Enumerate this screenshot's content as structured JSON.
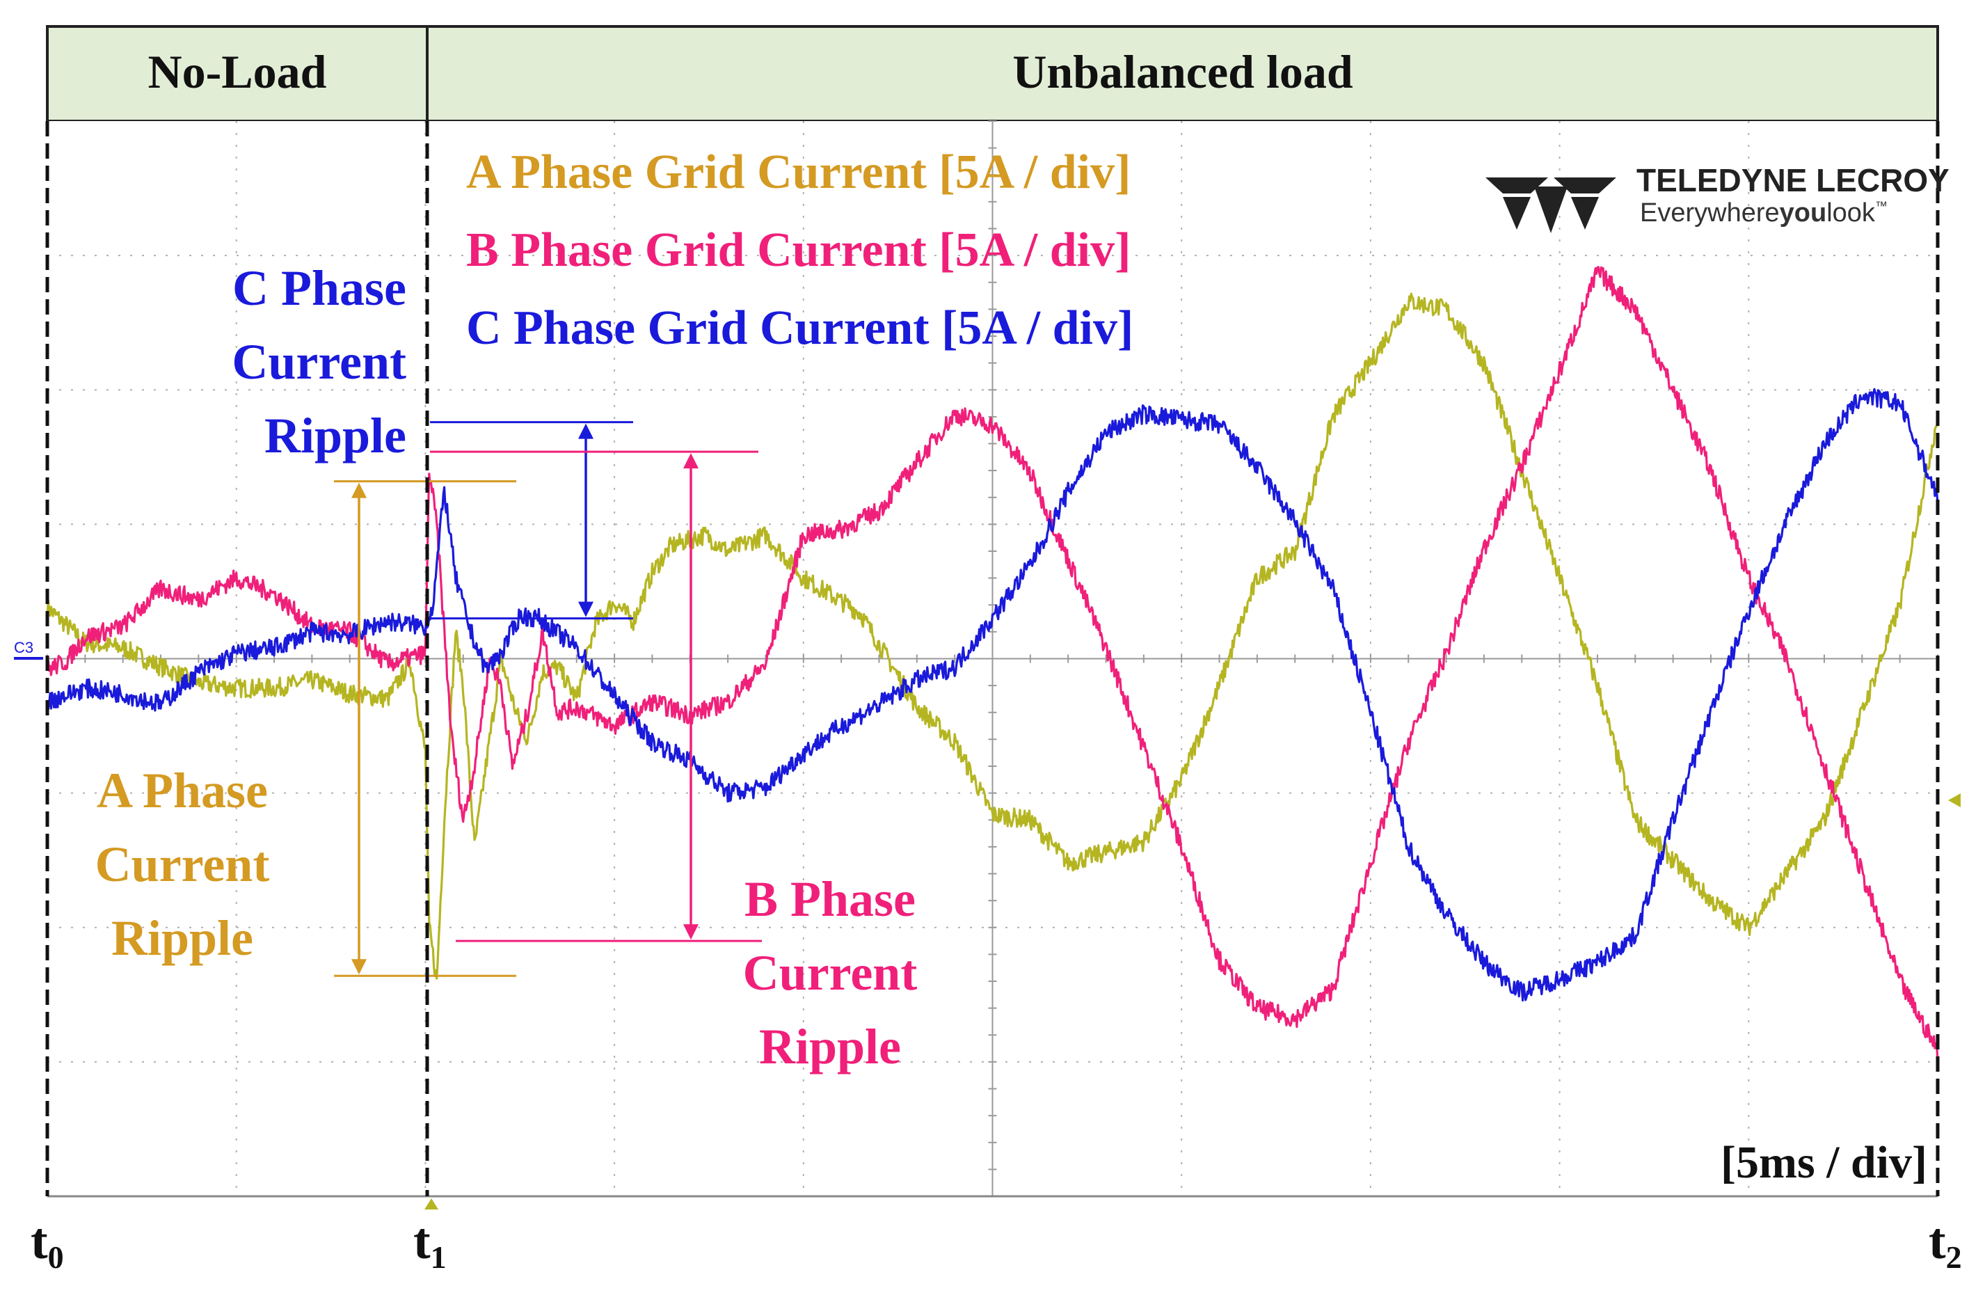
{
  "regions": [
    {
      "label": "No-Load"
    },
    {
      "label": "Unbalanced load"
    }
  ],
  "legend": [
    {
      "text": "A Phase Grid Current [5A / div]",
      "color": "#D49A22"
    },
    {
      "text": "B Phase Grid Current [5A / div]",
      "color": "#F0207A"
    },
    {
      "text": "C Phase Grid Current [5A / div]",
      "color": "#1A1ADB"
    }
  ],
  "annotations": {
    "c_ripple": [
      "C Phase",
      "Current",
      "Ripple"
    ],
    "a_ripple": [
      "A Phase",
      "Current",
      "Ripple"
    ],
    "b_ripple": [
      "B Phase",
      "Current",
      "Ripple"
    ]
  },
  "timescale": "[5ms / div]",
  "time_markers": [
    {
      "base": "t",
      "sub": "0"
    },
    {
      "base": "t",
      "sub": "1"
    },
    {
      "base": "t",
      "sub": "2"
    }
  ],
  "logo": {
    "brand": "TELEDYNE LECROY",
    "tagline_1": "Everywhere",
    "tagline_2": "you",
    "tagline_3": "look",
    "tm": "™"
  },
  "channel_marker": "C3",
  "colors": {
    "header_bg": "#E2EDD6",
    "phase_a_trace": "#B5B522",
    "phase_a_label": "#D49A22",
    "phase_b": "#F0207A",
    "phase_c": "#1A1ADB",
    "grid": "#B0B0B0"
  },
  "chart_data": {
    "type": "line",
    "x_unit": "ms",
    "y_unit": "A",
    "x_per_div": 5,
    "y_per_div": 5,
    "xlim": [
      0,
      50
    ],
    "ylim": [
      -20,
      20
    ],
    "transition_time": 10,
    "series": [
      {
        "name": "A Phase Grid Current [5A / div]",
        "color": "#B5B522",
        "points": [
          [
            0,
            1.9
          ],
          [
            1,
            0.6
          ],
          [
            2,
            0.4
          ],
          [
            3,
            -0.3
          ],
          [
            4,
            -0.9
          ],
          [
            5,
            -1.1
          ],
          [
            6,
            -1.1
          ],
          [
            7,
            -0.8
          ],
          [
            8,
            -1.3
          ],
          [
            9,
            -1.5
          ],
          [
            9.6,
            -0.1
          ],
          [
            10,
            -3.5
          ],
          [
            10.1,
            -10
          ],
          [
            10.3,
            -12
          ],
          [
            10.5,
            -6
          ],
          [
            10.8,
            1
          ],
          [
            11,
            -1
          ],
          [
            11.3,
            -7
          ],
          [
            11.6,
            -4
          ],
          [
            12,
            0
          ],
          [
            12.4,
            -2
          ],
          [
            12.7,
            -3
          ],
          [
            13.1,
            -0.5
          ],
          [
            13.5,
            -0.3
          ],
          [
            14,
            -1.5
          ],
          [
            14.5,
            1.3
          ],
          [
            15,
            2.1
          ],
          [
            15.5,
            1.4
          ],
          [
            16,
            3.2
          ],
          [
            16.5,
            4.2
          ],
          [
            17.4,
            4.6
          ],
          [
            18,
            4.0
          ],
          [
            19,
            4.6
          ],
          [
            20,
            3.0
          ],
          [
            21.5,
            1.7
          ],
          [
            23,
            -1.8
          ],
          [
            24,
            -3.1
          ],
          [
            25,
            -5.8
          ],
          [
            26,
            -6.0
          ],
          [
            27,
            -7.6
          ],
          [
            28,
            -7.2
          ],
          [
            29,
            -6.8
          ],
          [
            30,
            -4.5
          ],
          [
            31,
            -1
          ],
          [
            32,
            3
          ],
          [
            33,
            4
          ],
          [
            34,
            9
          ],
          [
            35,
            11
          ],
          [
            36,
            13.3
          ],
          [
            37,
            13.0
          ],
          [
            38,
            11.0
          ],
          [
            39,
            7
          ],
          [
            40,
            3
          ],
          [
            41,
            -1
          ],
          [
            42,
            -6
          ],
          [
            43,
            -7.5
          ],
          [
            44,
            -9
          ],
          [
            45,
            -10
          ],
          [
            46,
            -8
          ],
          [
            47,
            -6
          ],
          [
            48,
            -2
          ],
          [
            49,
            2
          ],
          [
            50,
            9
          ]
        ]
      },
      {
        "name": "B Phase Grid Current [5A / div]",
        "color": "#F0207A",
        "points": [
          [
            0,
            -0.4
          ],
          [
            0.5,
            -0.1
          ],
          [
            1,
            0.8
          ],
          [
            2,
            1.2
          ],
          [
            3,
            2.6
          ],
          [
            4,
            2.2
          ],
          [
            5,
            3.0
          ],
          [
            6,
            2.4
          ],
          [
            7,
            1.2
          ],
          [
            8,
            1.0
          ],
          [
            9,
            -0.2
          ],
          [
            10,
            0.2
          ],
          [
            10.1,
            7
          ],
          [
            10.3,
            5
          ],
          [
            10.7,
            -3
          ],
          [
            11,
            -6
          ],
          [
            11.3,
            -4
          ],
          [
            11.7,
            0
          ],
          [
            12,
            -1
          ],
          [
            12.3,
            -4
          ],
          [
            12.7,
            -2
          ],
          [
            13.1,
            1
          ],
          [
            13.5,
            -2
          ],
          [
            14,
            -1.8
          ],
          [
            15,
            -2.5
          ],
          [
            16,
            -1.6
          ],
          [
            17,
            -2.1
          ],
          [
            18,
            -1.6
          ],
          [
            19,
            -0.2
          ],
          [
            20,
            4.6
          ],
          [
            21,
            4.8
          ],
          [
            22,
            5.5
          ],
          [
            23,
            7.3
          ],
          [
            24,
            9.1
          ],
          [
            25,
            8.7
          ],
          [
            26,
            6.9
          ],
          [
            27,
            3.7
          ],
          [
            28,
            0.4
          ],
          [
            29,
            -3.3
          ],
          [
            30,
            -7
          ],
          [
            31,
            -11.2
          ],
          [
            32,
            -13
          ],
          [
            33,
            -13.4
          ],
          [
            34,
            -12.3
          ],
          [
            35,
            -7.6
          ],
          [
            36,
            -3.1
          ],
          [
            37,
            0.2
          ],
          [
            38,
            4.1
          ],
          [
            39,
            7.2
          ],
          [
            40,
            10.7
          ],
          [
            41,
            14.4
          ],
          [
            42,
            13
          ],
          [
            43,
            10
          ],
          [
            44,
            7
          ],
          [
            45,
            3
          ],
          [
            46,
            0
          ],
          [
            47,
            -4
          ],
          [
            48,
            -8
          ],
          [
            49,
            -12
          ],
          [
            50,
            -14.6
          ]
        ]
      },
      {
        "name": "C Phase Grid Current [5A / div]",
        "color": "#1A1ADB",
        "points": [
          [
            0,
            -1.6
          ],
          [
            1,
            -1.1
          ],
          [
            2,
            -1.3
          ],
          [
            3,
            -1.7
          ],
          [
            4,
            -0.5
          ],
          [
            5,
            0.2
          ],
          [
            6,
            0.4
          ],
          [
            7,
            1.0
          ],
          [
            8,
            0.9
          ],
          [
            9,
            1.4
          ],
          [
            10,
            1.2
          ],
          [
            10.2,
            2
          ],
          [
            10.5,
            6.3
          ],
          [
            10.8,
            3
          ],
          [
            11.2,
            1
          ],
          [
            11.6,
            -0.4
          ],
          [
            12,
            0.2
          ],
          [
            12.5,
            1.6
          ],
          [
            13,
            1.5
          ],
          [
            14,
            0.4
          ],
          [
            15,
            -1.4
          ],
          [
            16,
            -3.1
          ],
          [
            17,
            -3.8
          ],
          [
            18,
            -5.0
          ],
          [
            19,
            -4.8
          ],
          [
            20,
            -3.5
          ],
          [
            21,
            -2.5
          ],
          [
            22,
            -1.7
          ],
          [
            23,
            -0.8
          ],
          [
            24,
            -0.3
          ],
          [
            25,
            1.5
          ],
          [
            26,
            3.5
          ],
          [
            27,
            6.2
          ],
          [
            28,
            8.4
          ],
          [
            29,
            9.1
          ],
          [
            30,
            8.9
          ],
          [
            31,
            8.7
          ],
          [
            32,
            7.1
          ],
          [
            33,
            5.1
          ],
          [
            34,
            2.6
          ],
          [
            35,
            -2
          ],
          [
            36,
            -7
          ],
          [
            37,
            -9.5
          ],
          [
            38,
            -11.3
          ],
          [
            39,
            -12.4
          ],
          [
            40,
            -11.9
          ],
          [
            41,
            -11.3
          ],
          [
            42,
            -10.3
          ],
          [
            43,
            -6
          ],
          [
            44,
            -2
          ],
          [
            45,
            1.8
          ],
          [
            46,
            5.1
          ],
          [
            47,
            8
          ],
          [
            48,
            9.8
          ],
          [
            49,
            9.5
          ],
          [
            50,
            6
          ]
        ]
      }
    ],
    "ripple_bars": [
      {
        "phase": "C Phase",
        "from": 1.5,
        "to": 8.8
      },
      {
        "phase": "B Phase",
        "from": -10.5,
        "to": 7.7
      },
      {
        "phase": "A Phase",
        "from": -11.8,
        "to": 6.6
      }
    ]
  }
}
